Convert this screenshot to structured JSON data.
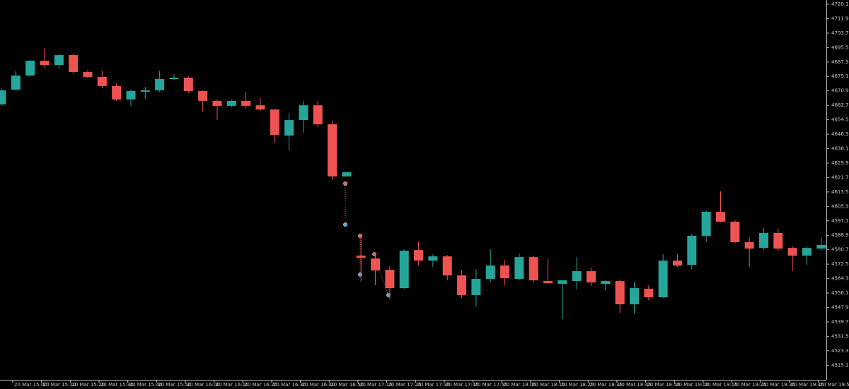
{
  "chart_data": {
    "type": "candlestick",
    "open": [
      4663.2,
      4671.6,
      4679.6,
      4688.0,
      4685.6,
      4691.2,
      4681.6,
      4678.8,
      4673.6,
      4666.0,
      4670.4,
      4671.2,
      4677.6,
      4678.4,
      4670.8,
      4665.2,
      4662.4,
      4665.2,
      4662.7,
      4660.3,
      4645.5,
      4654.3,
      4662.7,
      4651.9,
      4622.3,
      4577.3,
      4575.7,
      4569.3,
      4558.9,
      4580.5,
      4574.5,
      4576.9,
      4566.1,
      4554.9,
      4564.1,
      4571.7,
      4564.1,
      4576.5,
      4562.9,
      4561.3,
      4562.9,
      4568.5,
      4561.3,
      4562.9,
      4549.7,
      4558.5,
      4553.7,
      4574.5,
      4572.1,
      4588.6,
      4602.2,
      4596.6,
      4585.0,
      4581.7,
      4590.2,
      4581.7,
      4577.3,
      4581.3
    ],
    "high": [
      4672.4,
      4682.4,
      4688.4,
      4695.2,
      4692.0,
      4692.0,
      4682.8,
      4682.4,
      4675.2,
      4671.6,
      4673.2,
      4682.4,
      4680.4,
      4679.2,
      4671.2,
      4666.0,
      4666.0,
      4670.4,
      4666.8,
      4660.7,
      4658.3,
      4665.2,
      4665.2,
      4653.9,
      4625.1,
      4589.0,
      4578.1,
      4571.3,
      4580.9,
      4585.4,
      4578.1,
      4577.7,
      4569.3,
      4569.7,
      4580.9,
      4574.9,
      4578.5,
      4577.3,
      4575.3,
      4563.3,
      4576.5,
      4570.5,
      4563.3,
      4563.7,
      4562.5,
      4560.5,
      4578.1,
      4578.1,
      4589.8,
      4603.0,
      4613.8,
      4597.4,
      4587.8,
      4593.0,
      4592.6,
      4582.5,
      4582.5,
      4587.8
    ],
    "low": [
      4662.4,
      4671.2,
      4679.2,
      4684.0,
      4683.2,
      4680.8,
      4678.0,
      4672.4,
      4665.2,
      4662.4,
      4666.4,
      4670.4,
      4677.2,
      4669.6,
      4659.1,
      4654.3,
      4661.5,
      4660.7,
      4659.5,
      4641.5,
      4637.1,
      4647.1,
      4650.3,
      4620.2,
      4622.3,
      4562.5,
      4560.5,
      4552.5,
      4558.1,
      4571.7,
      4570.9,
      4563.3,
      4553.3,
      4548.1,
      4562.5,
      4560.5,
      4563.3,
      4562.1,
      4561.3,
      4541.3,
      4558.1,
      4560.1,
      4557.7,
      4544.9,
      4544.5,
      4552.1,
      4553.3,
      4570.9,
      4569.7,
      4585.0,
      4596.2,
      4584.2,
      4570.9,
      4580.9,
      4579.7,
      4568.5,
      4572.1,
      4580.1
    ],
    "close": [
      4671.2,
      4679.6,
      4688.0,
      4685.6,
      4691.2,
      4681.6,
      4678.8,
      4673.6,
      4666.0,
      4670.8,
      4671.2,
      4677.6,
      4678.4,
      4670.8,
      4665.2,
      4662.4,
      4665.2,
      4662.4,
      4660.3,
      4645.9,
      4654.3,
      4662.7,
      4651.9,
      4622.3,
      4624.7,
      4576.1,
      4568.9,
      4558.9,
      4580.1,
      4574.5,
      4576.9,
      4566.1,
      4554.9,
      4564.1,
      4571.7,
      4564.5,
      4576.5,
      4563.3,
      4561.7,
      4563.3,
      4568.5,
      4562.1,
      4562.9,
      4549.7,
      4558.9,
      4553.7,
      4574.5,
      4571.7,
      4588.6,
      4602.2,
      4596.6,
      4585.0,
      4581.3,
      4590.2,
      4581.3,
      4577.3,
      4581.7,
      4583.4
    ],
    "up_color": "#26a69a",
    "down_color": "#ef5350",
    "ylim": [
      4506.8,
      4722.5
    ],
    "yticks": [
      {
        "value": 4720.1,
        "label": "4720.10"
      },
      {
        "value": 4711.9,
        "label": "4711.90"
      },
      {
        "value": 4703.7,
        "label": "4703.70"
      },
      {
        "value": 4695.5,
        "label": "4695.50"
      },
      {
        "value": 4687.3,
        "label": "4687.30"
      },
      {
        "value": 4679.1,
        "label": "4679.10"
      },
      {
        "value": 4670.9,
        "label": "4670.90"
      },
      {
        "value": 4662.7,
        "label": "4662.70"
      },
      {
        "value": 4654.5,
        "label": "4654.50"
      },
      {
        "value": 4646.3,
        "label": "4646.30"
      },
      {
        "value": 4638.1,
        "label": "4638.10"
      },
      {
        "value": 4629.9,
        "label": "4629.90"
      },
      {
        "value": 4621.7,
        "label": "4621.70"
      },
      {
        "value": 4613.5,
        "label": "4613.50"
      },
      {
        "value": 4605.3,
        "label": "4605.30"
      },
      {
        "value": 4597.1,
        "label": "4597.10"
      },
      {
        "value": 4588.9,
        "label": "4588.90"
      },
      {
        "value": 4580.7,
        "label": "4580.70"
      },
      {
        "value": 4572.5,
        "label": "4572.50"
      },
      {
        "value": 4564.3,
        "label": "4564.30"
      },
      {
        "value": 4556.1,
        "label": "4556.10"
      },
      {
        "value": 4547.9,
        "label": "4547.90"
      },
      {
        "value": 4539.7,
        "label": "4539.70"
      },
      {
        "value": 4531.5,
        "label": "4531.50"
      },
      {
        "value": 4523.3,
        "label": "4523.30"
      },
      {
        "value": 4515.1,
        "label": "4515.10"
      }
    ],
    "xtick_labels": [
      "20 Mar 15:00",
      "20 Mar 15:10",
      "20 Mar 15:20",
      "20 Mar 15:30",
      "20 Mar 15:40",
      "20 Mar 15:50",
      "20 Mar 16:00",
      "20 Mar 16:10",
      "20 Mar 16:20",
      "20 Mar 16:30",
      "20 Mar 16:40",
      "20 Mar 16:50",
      "20 Mar 17:15",
      "20 Mar 17:25",
      "20 Mar 17:35",
      "20 Mar 17:45",
      "20 Mar 17:55",
      "20 Mar 18:05",
      "20 Mar 18:15",
      "20 Mar 18:25",
      "20 Mar 18:35",
      "20 Mar 18:45",
      "20 Mar 18:55",
      "20 Mar 19:05",
      "20 Mar 19:15",
      "20 Mar 19:25",
      "20 Mar 19:35",
      "20 Mar 19:45",
      "20 Mar 19:55"
    ]
  }
}
